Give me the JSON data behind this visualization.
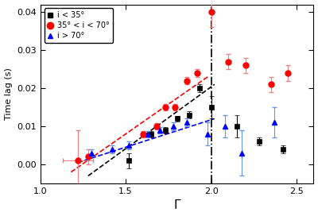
{
  "title": "",
  "xlabel": "Γ",
  "ylabel": "Time lag (s)",
  "xlim": [
    1.0,
    2.6
  ],
  "ylim": [
    -0.005,
    0.042
  ],
  "xticks": [
    1.0,
    1.5,
    2.0,
    2.5
  ],
  "yticks": [
    0.0,
    0.01,
    0.02,
    0.03,
    0.04
  ],
  "vline_x": 2.0,
  "black_x": [
    1.52,
    1.65,
    1.73,
    1.8,
    1.87,
    1.93,
    2.0,
    2.15,
    2.28,
    2.42
  ],
  "black_y": [
    0.001,
    0.008,
    0.009,
    0.012,
    0.013,
    0.02,
    0.015,
    0.01,
    0.006,
    0.004
  ],
  "black_yerr": [
    0.002,
    0.0008,
    0.0008,
    0.0008,
    0.001,
    0.001,
    0.003,
    0.003,
    0.001,
    0.001
  ],
  "red_x": [
    1.22,
    1.28,
    1.6,
    1.68,
    1.73,
    1.79,
    1.86,
    1.92,
    2.0,
    2.1,
    2.2,
    2.35,
    2.45
  ],
  "red_y": [
    0.001,
    0.002,
    0.008,
    0.01,
    0.015,
    0.015,
    0.022,
    0.024,
    0.04,
    0.027,
    0.026,
    0.021,
    0.024
  ],
  "red_xerr": [
    0.09,
    0.0,
    0.0,
    0.0,
    0.0,
    0.0,
    0.0,
    0.0,
    0.0,
    0.0,
    0.0,
    0.0,
    0.0
  ],
  "red_yerr": [
    0.008,
    0.002,
    0.0008,
    0.0008,
    0.0008,
    0.0008,
    0.001,
    0.001,
    0.004,
    0.002,
    0.002,
    0.002,
    0.002
  ],
  "blue_x": [
    1.3,
    1.42,
    1.52,
    1.63,
    1.7,
    1.78,
    1.86,
    1.98,
    2.08,
    2.18,
    2.37
  ],
  "blue_y": [
    0.003,
    0.004,
    0.005,
    0.008,
    0.009,
    0.01,
    0.011,
    0.008,
    0.01,
    0.003,
    0.011
  ],
  "blue_xerr": [
    0.0,
    0.0,
    0.0,
    0.0,
    0.0,
    0.0,
    0.0,
    0.0,
    0.0,
    0.0,
    0.0
  ],
  "blue_yerr": [
    0.001,
    0.001,
    0.001,
    0.0008,
    0.0008,
    0.001,
    0.001,
    0.003,
    0.003,
    0.006,
    0.004
  ],
  "black_fit_x": [
    1.28,
    2.02
  ],
  "black_fit_y": [
    -0.003,
    0.021
  ],
  "red_fit_x": [
    1.18,
    1.98
  ],
  "red_fit_y": [
    -0.002,
    0.023
  ],
  "blue_fit_x": [
    1.22,
    2.02
  ],
  "blue_fit_y": [
    0.0005,
    0.012
  ],
  "legend_labels": [
    "i < 35°",
    "35° < i < 70°",
    "i > 70°"
  ]
}
